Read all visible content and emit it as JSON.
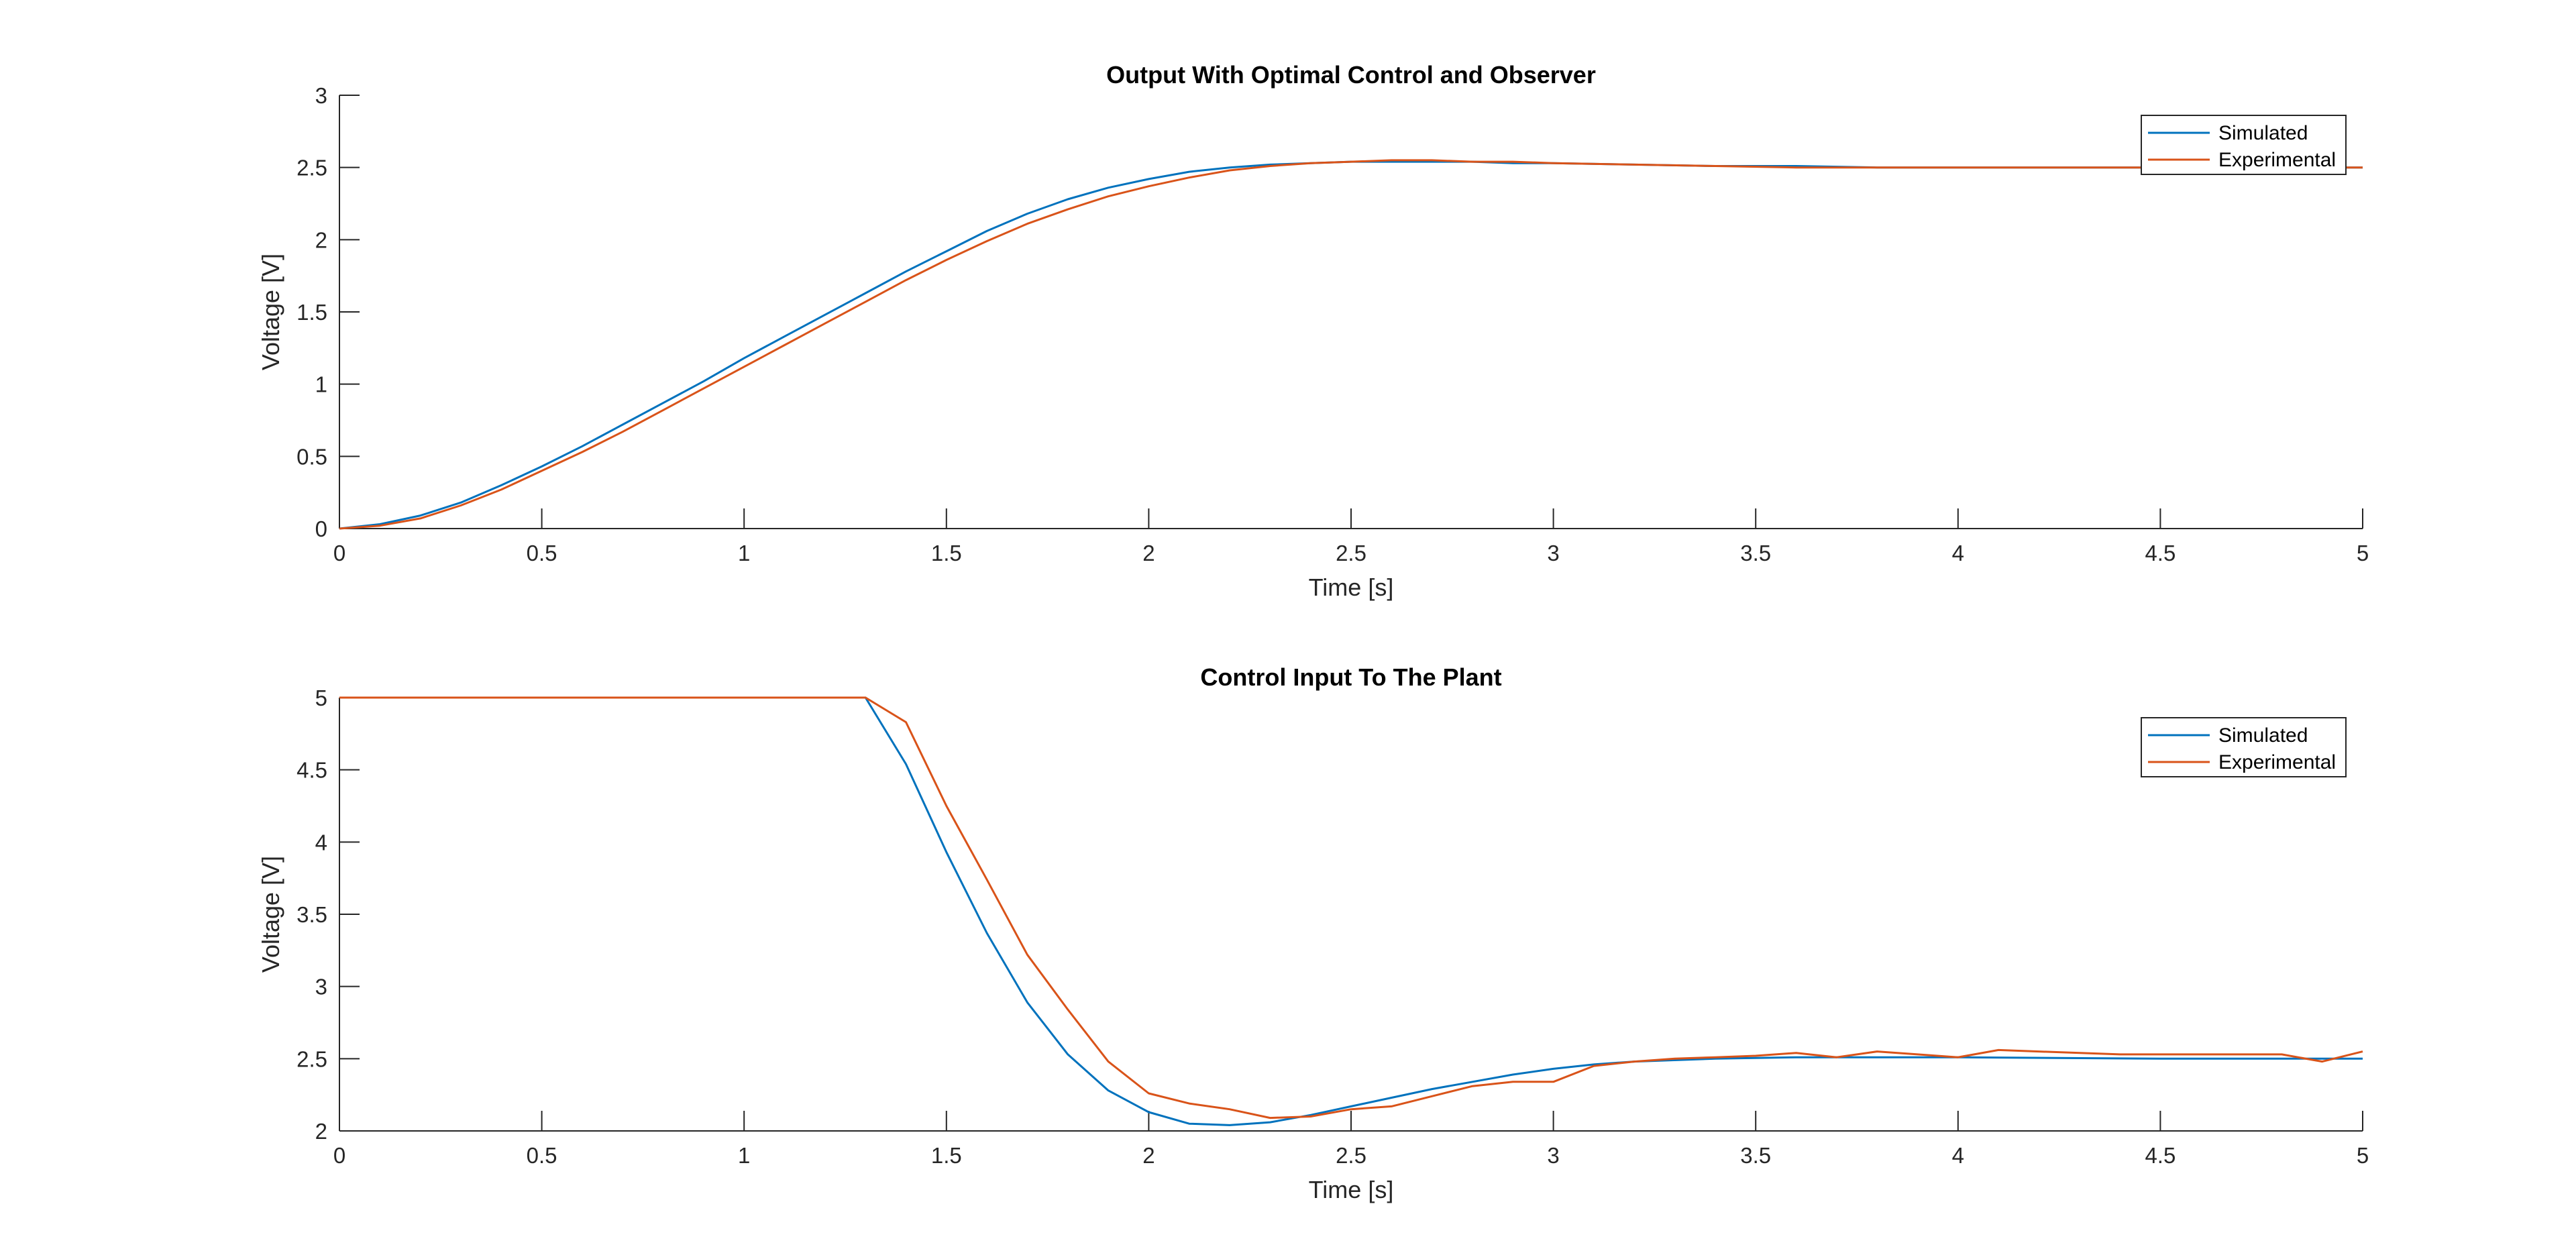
{
  "colors": {
    "simulated": "#0072BD",
    "experimental": "#D95319",
    "axis": "#262626",
    "background": "#ffffff"
  },
  "chart_data": [
    {
      "type": "line",
      "title": "Output With Optimal Control and Observer",
      "xlabel": "Time [s]",
      "ylabel": "Voltage [V]",
      "xlim": [
        0,
        5
      ],
      "ylim": [
        0,
        3
      ],
      "xticks": [
        0,
        0.5,
        1,
        1.5,
        2,
        2.5,
        3,
        3.5,
        4,
        4.5,
        5
      ],
      "xtick_labels": [
        "0",
        "0.5",
        "1",
        "1.5",
        "2",
        "2.5",
        "3",
        "3.5",
        "4",
        "4.5",
        "5"
      ],
      "yticks": [
        0,
        0.5,
        1,
        1.5,
        2,
        2.5,
        3
      ],
      "ytick_labels": [
        "0",
        "0.5",
        "1",
        "1.5",
        "2",
        "2.5",
        "3"
      ],
      "grid": false,
      "legend_position": "top-right",
      "series": [
        {
          "name": "Simulated",
          "color": "#0072BD",
          "x": [
            0,
            0.1,
            0.2,
            0.3,
            0.4,
            0.5,
            0.6,
            0.7,
            0.8,
            0.9,
            1.0,
            1.1,
            1.2,
            1.3,
            1.4,
            1.5,
            1.6,
            1.7,
            1.8,
            1.9,
            2.0,
            2.1,
            2.2,
            2.3,
            2.4,
            2.5,
            2.6,
            2.7,
            2.8,
            2.9,
            3.0,
            3.2,
            3.4,
            3.6,
            3.8,
            4.0,
            4.5,
            5.0
          ],
          "y": [
            0,
            0.03,
            0.09,
            0.18,
            0.3,
            0.43,
            0.57,
            0.72,
            0.87,
            1.02,
            1.18,
            1.33,
            1.48,
            1.63,
            1.78,
            1.92,
            2.06,
            2.18,
            2.28,
            2.36,
            2.42,
            2.47,
            2.5,
            2.52,
            2.53,
            2.54,
            2.54,
            2.54,
            2.54,
            2.53,
            2.53,
            2.52,
            2.51,
            2.51,
            2.5,
            2.5,
            2.5,
            2.5
          ]
        },
        {
          "name": "Experimental",
          "color": "#D95319",
          "x": [
            0,
            0.1,
            0.2,
            0.3,
            0.4,
            0.5,
            0.6,
            0.7,
            0.8,
            0.9,
            1.0,
            1.1,
            1.2,
            1.3,
            1.4,
            1.5,
            1.6,
            1.7,
            1.8,
            1.9,
            2.0,
            2.1,
            2.2,
            2.3,
            2.4,
            2.5,
            2.6,
            2.7,
            2.8,
            2.9,
            3.0,
            3.2,
            3.4,
            3.6,
            3.8,
            4.0,
            4.5,
            5.0
          ],
          "y": [
            0,
            0.02,
            0.07,
            0.16,
            0.27,
            0.4,
            0.53,
            0.67,
            0.82,
            0.97,
            1.12,
            1.27,
            1.42,
            1.57,
            1.72,
            1.86,
            1.99,
            2.11,
            2.21,
            2.3,
            2.37,
            2.43,
            2.48,
            2.51,
            2.53,
            2.54,
            2.55,
            2.55,
            2.54,
            2.54,
            2.53,
            2.52,
            2.51,
            2.5,
            2.5,
            2.5,
            2.5,
            2.5
          ]
        }
      ]
    },
    {
      "type": "line",
      "title": "Control Input To The Plant",
      "xlabel": "Time [s]",
      "ylabel": "Voltage [V]",
      "xlim": [
        0,
        5
      ],
      "ylim": [
        2,
        5
      ],
      "xticks": [
        0,
        0.5,
        1,
        1.5,
        2,
        2.5,
        3,
        3.5,
        4,
        4.5,
        5
      ],
      "xtick_labels": [
        "0",
        "0.5",
        "1",
        "1.5",
        "2",
        "2.5",
        "3",
        "3.5",
        "4",
        "4.5",
        "5"
      ],
      "yticks": [
        2,
        2.5,
        3,
        3.5,
        4,
        4.5,
        5
      ],
      "ytick_labels": [
        "2",
        "2.5",
        "3",
        "3.5",
        "4",
        "4.5",
        "5"
      ],
      "grid": false,
      "legend_position": "top-right",
      "series": [
        {
          "name": "Simulated",
          "color": "#0072BD",
          "x": [
            0,
            1.3,
            1.4,
            1.5,
            1.6,
            1.7,
            1.8,
            1.9,
            2.0,
            2.1,
            2.2,
            2.3,
            2.4,
            2.5,
            2.6,
            2.7,
            2.8,
            2.9,
            3.0,
            3.1,
            3.2,
            3.4,
            3.6,
            3.8,
            4.0,
            4.5,
            5.0
          ],
          "y": [
            5,
            5,
            4.54,
            3.93,
            3.37,
            2.89,
            2.53,
            2.28,
            2.13,
            2.05,
            2.04,
            2.06,
            2.11,
            2.17,
            2.23,
            2.29,
            2.34,
            2.39,
            2.43,
            2.46,
            2.48,
            2.5,
            2.51,
            2.51,
            2.51,
            2.5,
            2.5
          ]
        },
        {
          "name": "Experimental",
          "color": "#D95319",
          "x": [
            0,
            1.3,
            1.4,
            1.5,
            1.6,
            1.7,
            1.8,
            1.9,
            2.0,
            2.1,
            2.2,
            2.3,
            2.4,
            2.5,
            2.6,
            2.7,
            2.8,
            2.9,
            3.0,
            3.1,
            3.2,
            3.3,
            3.4,
            3.5,
            3.6,
            3.7,
            3.8,
            3.9,
            4.0,
            4.1,
            4.2,
            4.4,
            4.6,
            4.8,
            4.9,
            5.0
          ],
          "y": [
            5,
            5,
            4.83,
            4.25,
            3.74,
            3.22,
            2.84,
            2.48,
            2.26,
            2.19,
            2.15,
            2.09,
            2.1,
            2.15,
            2.17,
            2.24,
            2.31,
            2.34,
            2.34,
            2.45,
            2.48,
            2.5,
            2.51,
            2.52,
            2.54,
            2.51,
            2.55,
            2.53,
            2.51,
            2.56,
            2.55,
            2.53,
            2.53,
            2.53,
            2.48,
            2.55
          ]
        }
      ]
    }
  ]
}
